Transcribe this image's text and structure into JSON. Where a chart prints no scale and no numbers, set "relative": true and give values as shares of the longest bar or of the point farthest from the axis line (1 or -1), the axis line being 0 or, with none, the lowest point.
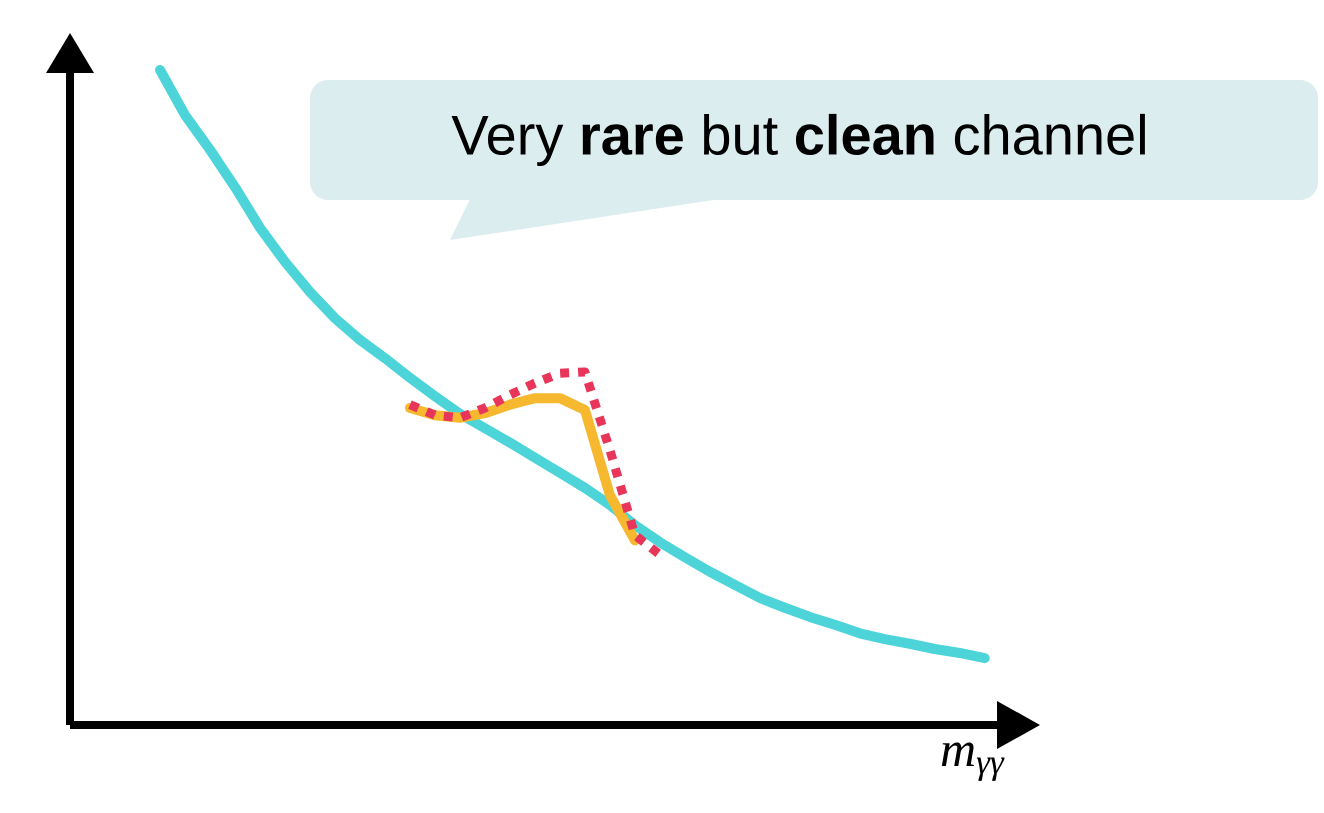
{
  "chart_data": {
    "type": "line",
    "relative": true,
    "xlabel": "m$_{γγ}$",
    "marker": "none",
    "annotations": [
      "Very **rare** but **clean** channel"
    ],
    "categories": [
      null,
      null,
      null,
      null,
      null,
      null,
      null,
      null,
      null,
      null,
      null,
      null,
      null,
      null,
      null,
      null,
      null,
      null,
      null,
      null,
      null,
      null,
      null,
      null,
      null,
      null,
      null,
      null,
      null,
      null,
      null,
      null,
      null,
      null
    ],
    "series": [
      {
        "color": "#4dd4d8",
        "line_style": "solid",
        "values": [
          1,
          0.931,
          0.878,
          0.821,
          0.759,
          0.707,
          0.661,
          0.621,
          0.588,
          0.56,
          0.53,
          0.502,
          0.475,
          0.453,
          0.431,
          0.408,
          0.385,
          0.362,
          0.336,
          0.305,
          0.279,
          0.256,
          0.234,
          0.214,
          0.194,
          0.179,
          0.165,
          0.153,
          0.14,
          0.131,
          0.124,
          0.116,
          0.11,
          0.102
        ]
      },
      {
        "color": "#f5b82e",
        "line_style": "solid",
        "values": [
          null,
          null,
          null,
          null,
          null,
          null,
          null,
          null,
          null,
          null,
          0.484,
          0.473,
          0.469,
          0.476,
          0.489,
          0.499,
          0.499,
          0.481,
          0.351,
          0.282,
          null,
          null,
          null,
          null,
          null,
          null,
          null,
          null,
          null,
          null,
          null,
          null,
          null,
          null
        ]
      },
      {
        "color": "#e8365a",
        "line_style": "dotted",
        "values": [
          null,
          null,
          null,
          null,
          null,
          null,
          null,
          null,
          null,
          null,
          0.489,
          0.473,
          0.469,
          0.484,
          0.504,
          0.522,
          0.537,
          0.539,
          0.42,
          0.29,
          0.26,
          null,
          null,
          null,
          null,
          null,
          null,
          null,
          null,
          null,
          null,
          null,
          null,
          null
        ]
      }
    ]
  }
}
